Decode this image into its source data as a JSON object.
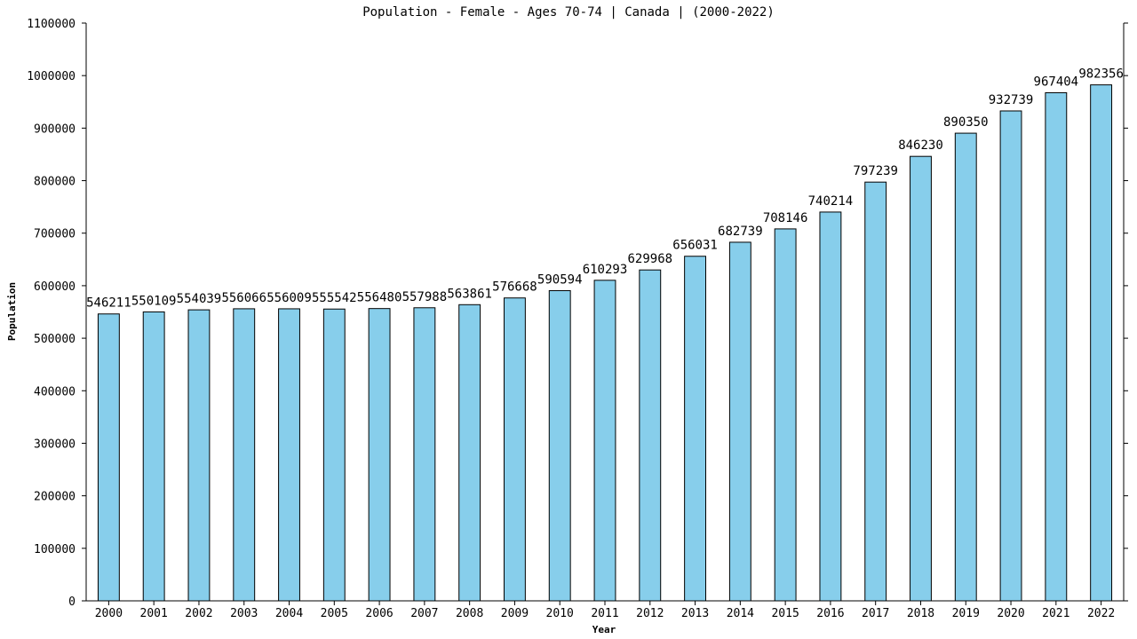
{
  "chart_data": {
    "type": "bar",
    "title": "Population - Female - Ages 70-74 | Canada |  (2000-2022)",
    "xlabel": "Year",
    "ylabel": "Population",
    "ylim": [
      0,
      1100000
    ],
    "yticks": [
      0,
      100000,
      200000,
      300000,
      400000,
      500000,
      600000,
      700000,
      800000,
      900000,
      1000000,
      1100000
    ],
    "grid": false,
    "bar_color": "#87ceeb",
    "categories": [
      "2000",
      "2001",
      "2002",
      "2003",
      "2004",
      "2005",
      "2006",
      "2007",
      "2008",
      "2009",
      "2010",
      "2011",
      "2012",
      "2013",
      "2014",
      "2015",
      "2016",
      "2017",
      "2018",
      "2019",
      "2020",
      "2021",
      "2022"
    ],
    "values": [
      546211,
      550109,
      554039,
      556066,
      556009,
      555542,
      556480,
      557988,
      563861,
      576668,
      590594,
      610293,
      629968,
      656031,
      682739,
      708146,
      740214,
      797239,
      846230,
      890350,
      932739,
      967404,
      982356
    ]
  }
}
